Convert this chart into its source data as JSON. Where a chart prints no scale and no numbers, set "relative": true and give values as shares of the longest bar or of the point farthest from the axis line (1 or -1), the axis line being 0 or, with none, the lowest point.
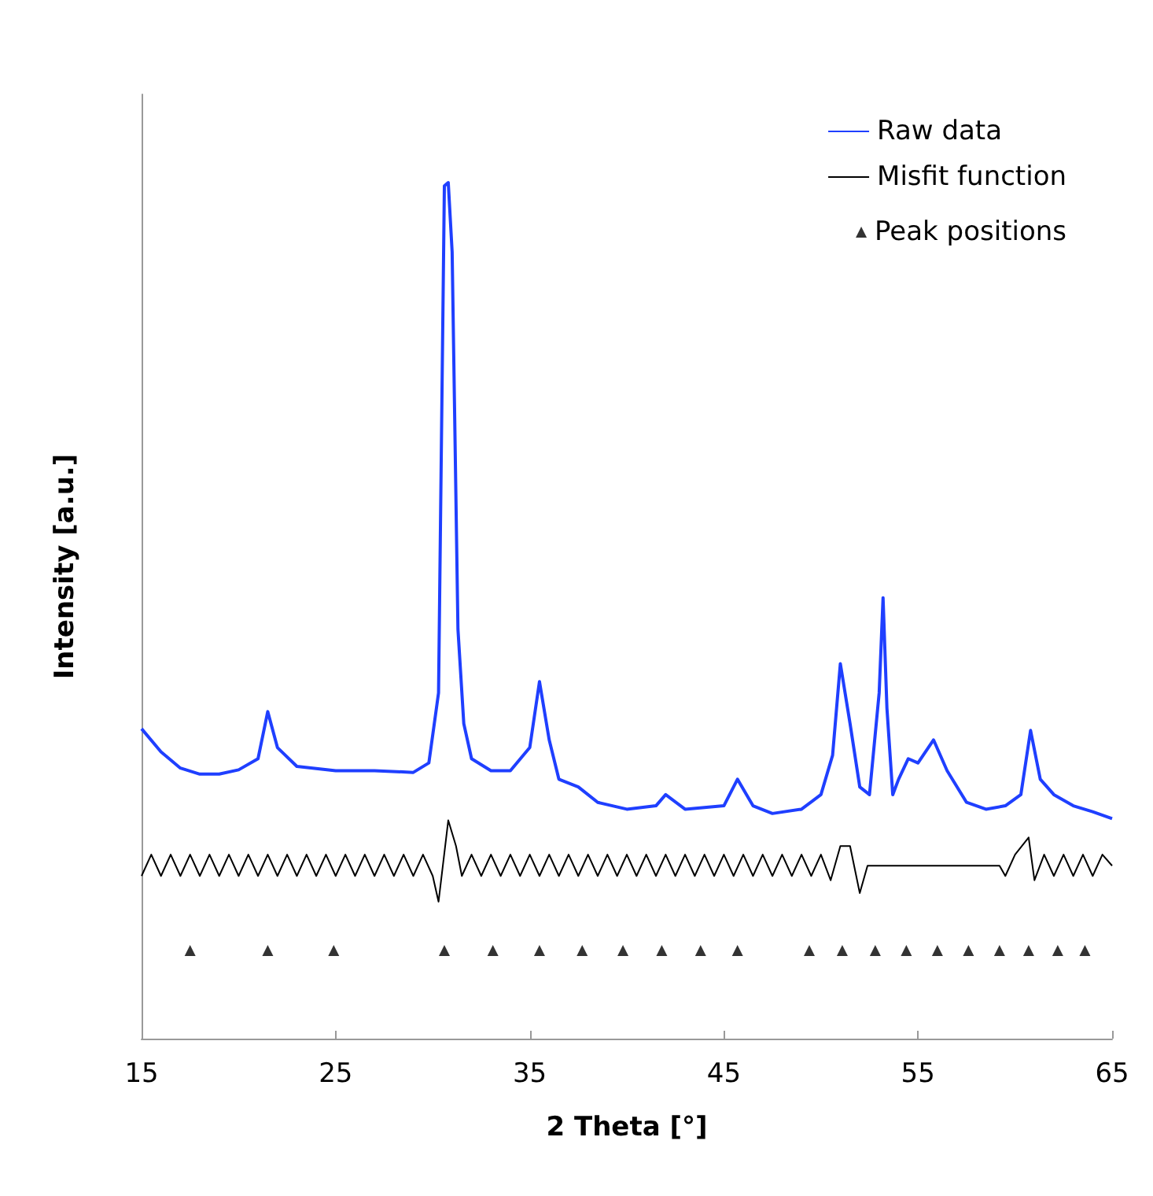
{
  "chart_data": {
    "type": "line",
    "relative": true,
    "xlabel": "2 Theta [°]",
    "ylabel": "Intensity [a.u.]",
    "xlim": [
      15,
      65
    ],
    "xticks": [
      15,
      25,
      35,
      45,
      55,
      65
    ],
    "grid": false,
    "legend": "top right",
    "marker": "none",
    "series": [
      {
        "name": "Raw data",
        "color": "#1f3fff",
        "x": [
          15,
          16,
          17,
          18,
          19,
          20,
          21,
          21.5,
          22,
          23,
          25,
          27,
          29,
          29.8,
          30.3,
          30.6,
          30.8,
          31.0,
          31.3,
          31.6,
          32,
          33,
          34,
          35,
          35.5,
          36,
          36.5,
          37.5,
          38.5,
          40,
          41.5,
          42,
          43,
          45,
          45.7,
          46.5,
          47.5,
          49,
          50,
          50.6,
          51.0,
          51.5,
          52,
          52.5,
          53.0,
          53.2,
          53.4,
          53.7,
          54,
          54.5,
          55,
          55.8,
          56.5,
          57.5,
          58.5,
          59.5,
          60.3,
          60.8,
          61.3,
          62,
          63,
          64,
          65
        ],
        "values": [
          0.362,
          0.335,
          0.316,
          0.309,
          0.309,
          0.314,
          0.327,
          0.382,
          0.34,
          0.318,
          0.313,
          0.313,
          0.311,
          0.322,
          0.404,
          0.996,
          1.0,
          0.919,
          0.478,
          0.368,
          0.327,
          0.313,
          0.313,
          0.34,
          0.417,
          0.349,
          0.303,
          0.294,
          0.276,
          0.268,
          0.272,
          0.285,
          0.268,
          0.272,
          0.303,
          0.272,
          0.263,
          0.268,
          0.285,
          0.331,
          0.438,
          0.368,
          0.294,
          0.285,
          0.404,
          0.515,
          0.386,
          0.285,
          0.303,
          0.327,
          0.322,
          0.349,
          0.313,
          0.276,
          0.268,
          0.272,
          0.285,
          0.36,
          0.303,
          0.285,
          0.272,
          0.265,
          0.257
        ]
      },
      {
        "name": "Misfit function",
        "color": "#000000",
        "x": [
          15,
          15.5,
          16,
          16.5,
          17,
          17.5,
          18,
          18.5,
          19,
          19.5,
          20,
          20.5,
          21,
          21.5,
          22,
          22.5,
          23,
          23.5,
          24,
          24.5,
          25,
          25.5,
          26,
          26.5,
          27,
          27.5,
          28,
          28.5,
          29,
          29.5,
          30,
          30.3,
          30.8,
          31.2,
          31.5,
          32,
          32.5,
          33,
          33.5,
          34,
          34.5,
          35,
          35.5,
          36,
          36.5,
          37,
          37.5,
          38,
          38.5,
          39,
          39.5,
          40,
          40.5,
          41,
          41.5,
          42,
          42.5,
          43,
          43.5,
          44,
          44.5,
          45,
          45.5,
          46,
          46.5,
          47,
          47.5,
          48,
          48.5,
          49,
          49.5,
          50,
          50.5,
          51,
          51.5,
          52,
          52.4,
          59.2,
          59.5,
          60,
          60.7,
          61,
          61.5,
          62,
          62.5,
          63,
          63.5,
          64,
          64.5,
          65
        ],
        "values": [
          0.19,
          0.215,
          0.19,
          0.215,
          0.19,
          0.215,
          0.19,
          0.215,
          0.19,
          0.215,
          0.19,
          0.215,
          0.19,
          0.215,
          0.19,
          0.215,
          0.19,
          0.215,
          0.19,
          0.215,
          0.19,
          0.215,
          0.19,
          0.215,
          0.19,
          0.215,
          0.19,
          0.215,
          0.19,
          0.215,
          0.19,
          0.16,
          0.255,
          0.225,
          0.19,
          0.215,
          0.19,
          0.215,
          0.19,
          0.215,
          0.19,
          0.215,
          0.19,
          0.215,
          0.19,
          0.215,
          0.19,
          0.215,
          0.19,
          0.215,
          0.19,
          0.215,
          0.19,
          0.215,
          0.19,
          0.215,
          0.19,
          0.215,
          0.19,
          0.215,
          0.19,
          0.215,
          0.19,
          0.215,
          0.19,
          0.215,
          0.19,
          0.215,
          0.19,
          0.215,
          0.19,
          0.215,
          0.185,
          0.225,
          0.225,
          0.17,
          0.202,
          0.202,
          0.19,
          0.215,
          0.235,
          0.185,
          0.215,
          0.19,
          0.215,
          0.19,
          0.215,
          0.19,
          0.215,
          0.202
        ]
      },
      {
        "name": "Peak positions",
        "type": "scatter",
        "marker": "triangle",
        "color": "#000000",
        "x": [
          17.5,
          21.5,
          24.9,
          30.6,
          33.1,
          35.5,
          37.7,
          39.8,
          41.8,
          43.8,
          45.7,
          49.4,
          51.1,
          52.8,
          54.4,
          56.0,
          57.6,
          59.2,
          60.7,
          62.2,
          63.6
        ],
        "values": [
          0.103,
          0.103,
          0.103,
          0.103,
          0.103,
          0.103,
          0.103,
          0.103,
          0.103,
          0.103,
          0.103,
          0.103,
          0.103,
          0.103,
          0.103,
          0.103,
          0.103,
          0.103,
          0.103,
          0.103,
          0.103
        ]
      }
    ]
  }
}
